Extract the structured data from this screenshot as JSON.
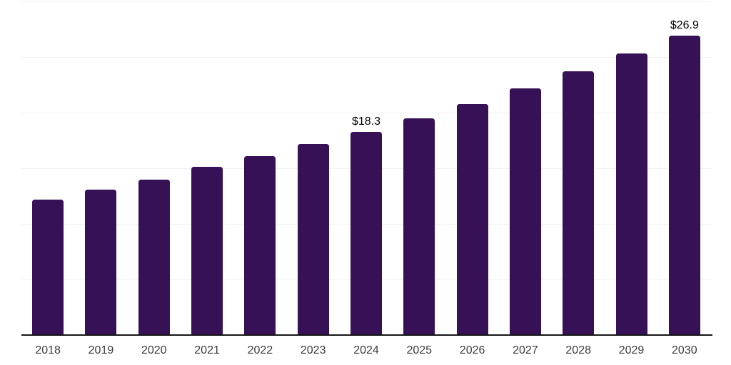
{
  "chart_data": {
    "type": "bar",
    "title": "",
    "xlabel": "",
    "ylabel": "",
    "categories": [
      "2018",
      "2019",
      "2020",
      "2021",
      "2022",
      "2023",
      "2024",
      "2025",
      "2026",
      "2027",
      "2028",
      "2029",
      "2030"
    ],
    "values": [
      12.2,
      13.1,
      14.0,
      15.1,
      16.1,
      17.2,
      18.3,
      19.5,
      20.8,
      22.2,
      23.7,
      25.3,
      26.9
    ],
    "annotations": [
      {
        "category": "2024",
        "label": "$18.3"
      },
      {
        "category": "2030",
        "label": "$26.9"
      }
    ],
    "ylim": [
      0,
      30
    ],
    "grid_interval": 5,
    "grid": "horizontal-only",
    "y_tick_labels_visible": false,
    "legend_position": "none",
    "colors": {
      "bar": "#371155",
      "axis_line": "#161616",
      "gridline": "#f2f2f2",
      "tick_label": "#3c3c3c",
      "annotation": "#000000",
      "background": "#ffffff"
    }
  }
}
